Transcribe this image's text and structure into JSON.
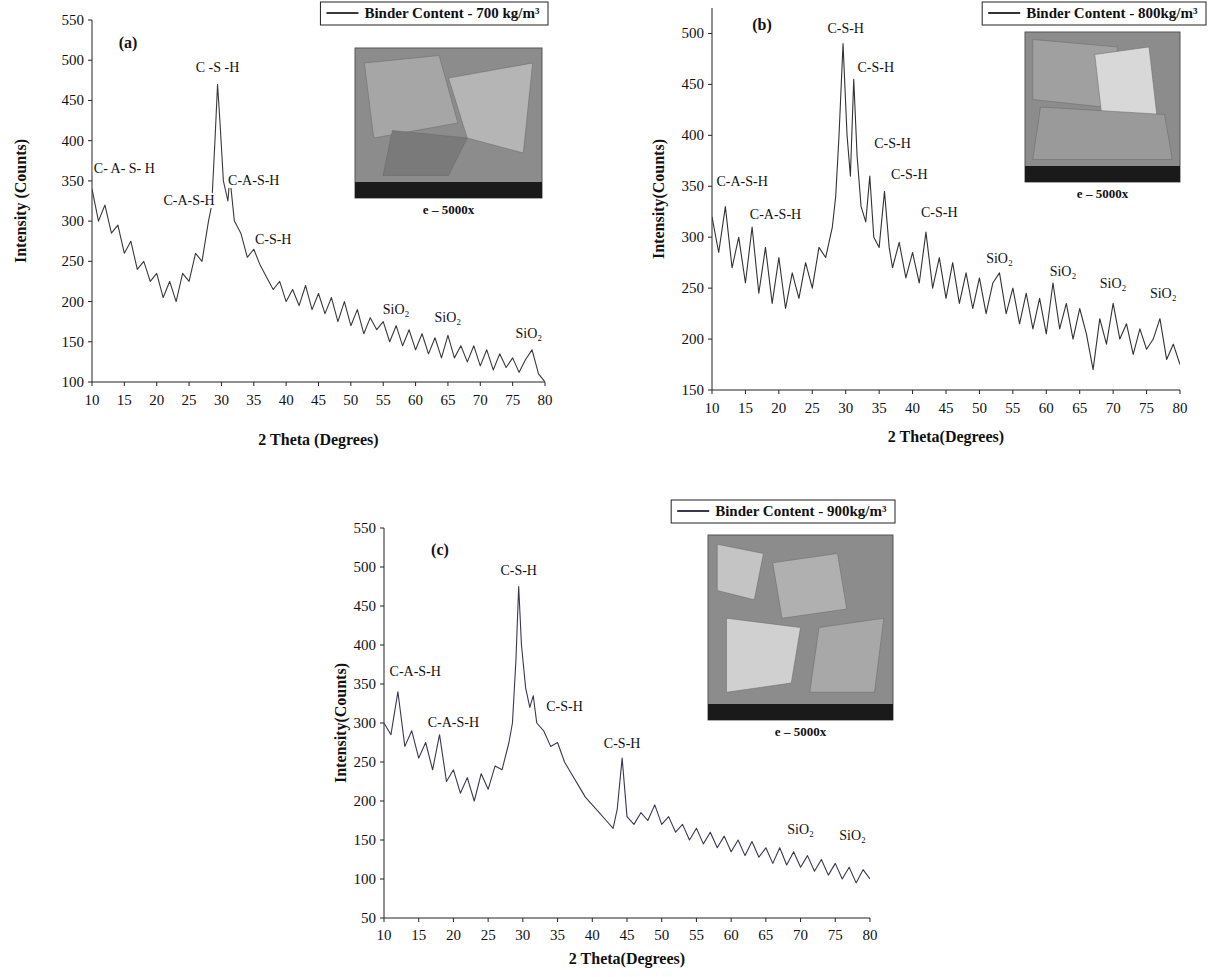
{
  "chart_data": [
    {
      "type": "line",
      "panel": "(a)",
      "x_label": "2 Theta (Degrees)",
      "y_label": "Intensity (Counts)",
      "xlim": [
        10,
        80
      ],
      "xticks": [
        10,
        15,
        20,
        25,
        30,
        35,
        40,
        45,
        50,
        55,
        60,
        65,
        70,
        75,
        80
      ],
      "ylim": [
        100,
        550
      ],
      "yticks": [
        100,
        150,
        200,
        250,
        300,
        350,
        400,
        450,
        500,
        550
      ],
      "grid": false,
      "legend": "top-right",
      "x": [
        10,
        11,
        12,
        13,
        14,
        15,
        16,
        17,
        18,
        19,
        20,
        21,
        22,
        23,
        24,
        25,
        26,
        27,
        28,
        28.5,
        29,
        29.4,
        29.8,
        30.3,
        31,
        31.3,
        32,
        33,
        34,
        35,
        36,
        37,
        38,
        39,
        40,
        41,
        42,
        43,
        44,
        45,
        46,
        47,
        48,
        49,
        50,
        51,
        52,
        53,
        54,
        55,
        56,
        57,
        58,
        59,
        60,
        61,
        62,
        63,
        64,
        65,
        66,
        67,
        68,
        69,
        70,
        71,
        72,
        73,
        74,
        75,
        76,
        77,
        78,
        79,
        80
      ],
      "series": [
        {
          "name": "Binder Content - 700 kg/m³",
          "color": "#3a3a3a",
          "values": [
            340,
            300,
            320,
            285,
            295,
            260,
            275,
            240,
            250,
            225,
            235,
            205,
            225,
            200,
            235,
            225,
            260,
            250,
            300,
            320,
            400,
            470,
            420,
            350,
            325,
            355,
            300,
            285,
            255,
            265,
            245,
            230,
            215,
            225,
            200,
            215,
            195,
            220,
            190,
            210,
            185,
            205,
            175,
            200,
            170,
            190,
            160,
            180,
            165,
            175,
            150,
            170,
            145,
            165,
            140,
            160,
            135,
            155,
            130,
            158,
            130,
            145,
            125,
            145,
            120,
            140,
            115,
            135,
            118,
            130,
            112,
            128,
            140,
            110,
            100
          ]
        }
      ],
      "annotations": [
        {
          "text": "C- A- S- H",
          "x": 15,
          "y": 360
        },
        {
          "text": "C-A-S-H",
          "x": 25,
          "y": 320
        },
        {
          "text": "C -S -H",
          "x": 29.4,
          "y": 485
        },
        {
          "text": "C-A-S-H",
          "x": 35,
          "y": 345
        },
        {
          "text": "C-S-H",
          "x": 38,
          "y": 272
        },
        {
          "text": "SiO₂",
          "x": 57,
          "y": 185
        },
        {
          "text": "SiO₂",
          "x": 65,
          "y": 175
        },
        {
          "text": "SiO₂",
          "x": 77.5,
          "y": 155
        }
      ],
      "inset_caption": "e – 5000x"
    },
    {
      "type": "line",
      "panel": "(b)",
      "x_label": "2 Theta(Degrees)",
      "y_label": "Intensity(Counts)",
      "xlim": [
        10,
        80
      ],
      "xticks": [
        10,
        15,
        20,
        25,
        30,
        35,
        40,
        45,
        50,
        55,
        60,
        65,
        70,
        75,
        80
      ],
      "ylim": [
        150,
        525
      ],
      "yticks": [
        150,
        200,
        250,
        300,
        350,
        400,
        450,
        500
      ],
      "grid": false,
      "legend": "top-right",
      "x": [
        10,
        11,
        12,
        13,
        14,
        15,
        16,
        17,
        18,
        19,
        20,
        21,
        22,
        23,
        24,
        25,
        26,
        27,
        28,
        28.5,
        29,
        29.6,
        30.2,
        30.7,
        31.2,
        31.7,
        32.3,
        33,
        33.6,
        34.2,
        35,
        35.8,
        36.5,
        37,
        38,
        39,
        40,
        41,
        42,
        43,
        44,
        45,
        46,
        47,
        48,
        49,
        50,
        51,
        52,
        53,
        54,
        55,
        56,
        57,
        58,
        59,
        60,
        61,
        62,
        63,
        64,
        65,
        66,
        67,
        68,
        69,
        70,
        71,
        72,
        73,
        74,
        75,
        76,
        77,
        78,
        79,
        80
      ],
      "series": [
        {
          "name": "Binder Content - 800kg/m³",
          "color": "#333333",
          "values": [
            320,
            285,
            330,
            270,
            300,
            255,
            310,
            245,
            290,
            235,
            280,
            230,
            265,
            240,
            275,
            250,
            290,
            280,
            310,
            340,
            400,
            490,
            400,
            360,
            455,
            380,
            330,
            315,
            360,
            300,
            290,
            345,
            290,
            270,
            295,
            260,
            285,
            255,
            305,
            250,
            280,
            240,
            275,
            235,
            265,
            230,
            260,
            225,
            255,
            265,
            225,
            250,
            215,
            245,
            210,
            240,
            205,
            255,
            210,
            235,
            200,
            230,
            205,
            170,
            220,
            195,
            235,
            200,
            215,
            185,
            210,
            190,
            200,
            220,
            180,
            195,
            175
          ]
        }
      ],
      "annotations": [
        {
          "text": "C-A-S-H",
          "x": 14.5,
          "y": 350
        },
        {
          "text": "C-A-S-H",
          "x": 19.5,
          "y": 318
        },
        {
          "text": "C-S-H",
          "x": 30,
          "y": 500
        },
        {
          "text": "C-S-H",
          "x": 34.5,
          "y": 462
        },
        {
          "text": "C-S-H",
          "x": 37,
          "y": 388
        },
        {
          "text": "C-S-H",
          "x": 39.5,
          "y": 357
        },
        {
          "text": "C-S-H",
          "x": 44,
          "y": 320
        },
        {
          "text": "SiO₂",
          "x": 53,
          "y": 275
        },
        {
          "text": "SiO₂",
          "x": 62.5,
          "y": 262
        },
        {
          "text": "SiO₂",
          "x": 70,
          "y": 250
        },
        {
          "text": "SiO₂",
          "x": 77.5,
          "y": 240
        }
      ],
      "inset_caption": "e – 5000x"
    },
    {
      "type": "line",
      "panel": "(c)",
      "x_label": "2 Theta(Degrees)",
      "y_label": "Intensity(Counts)",
      "xlim": [
        10,
        80
      ],
      "xticks": [
        10,
        15,
        20,
        25,
        30,
        35,
        40,
        45,
        50,
        55,
        60,
        65,
        70,
        75,
        80
      ],
      "ylim": [
        50,
        550
      ],
      "yticks": [
        50,
        100,
        150,
        200,
        250,
        300,
        350,
        400,
        450,
        500,
        550
      ],
      "grid": false,
      "legend": "top-right",
      "x": [
        10,
        11,
        12,
        13,
        14,
        15,
        16,
        17,
        18,
        19,
        20,
        21,
        22,
        23,
        24,
        25,
        26,
        27,
        28,
        28.5,
        29,
        29.4,
        29.8,
        30.4,
        31,
        31.5,
        32,
        33,
        34,
        35,
        36,
        37,
        38,
        39,
        40,
        41,
        42,
        43,
        43.6,
        44.3,
        45,
        46,
        47,
        48,
        49,
        50,
        51,
        52,
        53,
        54,
        55,
        56,
        57,
        58,
        59,
        60,
        61,
        62,
        63,
        64,
        65,
        66,
        67,
        68,
        69,
        70,
        71,
        72,
        73,
        74,
        75,
        76,
        77,
        78,
        79,
        80
      ],
      "series": [
        {
          "name": "Binder Content - 900kg/m³",
          "color": "#3d3650",
          "values": [
            300,
            285,
            340,
            270,
            290,
            255,
            275,
            240,
            285,
            225,
            240,
            210,
            230,
            200,
            235,
            215,
            245,
            240,
            275,
            300,
            380,
            475,
            400,
            345,
            320,
            335,
            300,
            290,
            270,
            275,
            250,
            235,
            220,
            205,
            195,
            185,
            175,
            165,
            190,
            255,
            180,
            170,
            185,
            175,
            195,
            170,
            180,
            160,
            170,
            150,
            165,
            145,
            160,
            140,
            155,
            135,
            150,
            130,
            148,
            128,
            140,
            120,
            140,
            118,
            135,
            115,
            130,
            110,
            125,
            105,
            120,
            100,
            115,
            95,
            112,
            100
          ]
        }
      ],
      "annotations": [
        {
          "text": "C-A-S-H",
          "x": 14.5,
          "y": 360
        },
        {
          "text": "C-A-S-H",
          "x": 20,
          "y": 295
        },
        {
          "text": "C-S-H",
          "x": 29.4,
          "y": 490
        },
        {
          "text": "C-S-H",
          "x": 36,
          "y": 315
        },
        {
          "text": "C-S-H",
          "x": 44.3,
          "y": 268
        },
        {
          "text": "SiO₂",
          "x": 70,
          "y": 158
        },
        {
          "text": "SiO₂",
          "x": 77.5,
          "y": 150
        }
      ],
      "inset_caption": "e – 5000x"
    }
  ]
}
